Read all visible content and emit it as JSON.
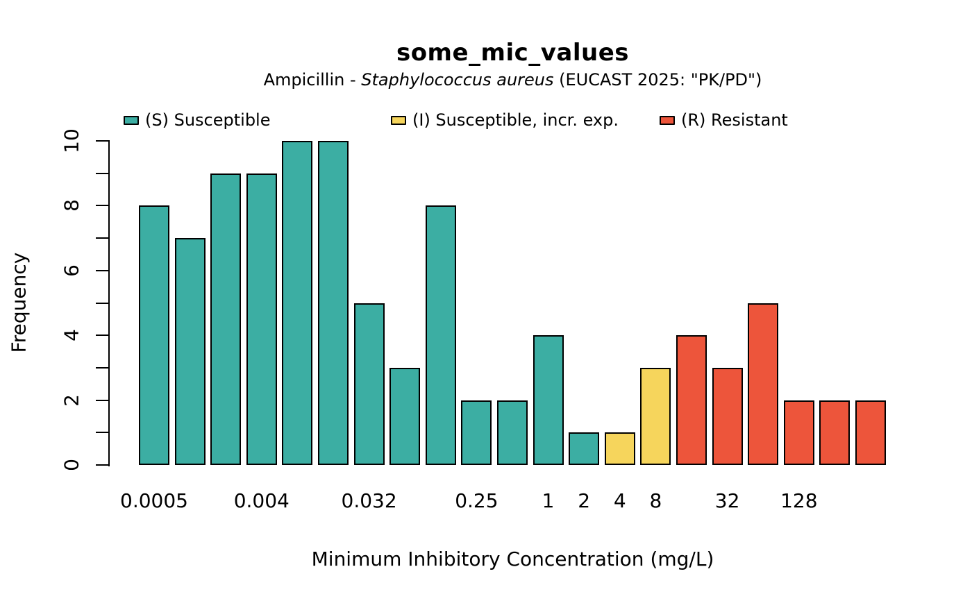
{
  "title": "some_mic_values",
  "subtitle": {
    "prefix": "Ampicillin - ",
    "italic": "Staphylococcus aureus",
    "suffix": " (EUCAST 2025: \"PK/PD\")"
  },
  "legend": [
    {
      "label": "(S) Susceptible",
      "color": "#3CAEA3"
    },
    {
      "label": "(I) Susceptible, incr. exp.",
      "color": "#F6D55C"
    },
    {
      "label": "(R) Resistant",
      "color": "#ED553B"
    }
  ],
  "chart_data": {
    "type": "bar",
    "title": "some_mic_values",
    "subtitle": "Ampicillin - Staphylococcus aureus (EUCAST 2025: \"PK/PD\")",
    "xlabel": "Minimum Inhibitory Concentration (mg/L)",
    "ylabel": "Frequency",
    "ylim": [
      0,
      10
    ],
    "grid": false,
    "legend_position": "top",
    "y_ticks": [
      0,
      1,
      2,
      3,
      4,
      5,
      6,
      7,
      8,
      9,
      10
    ],
    "y_labeled_values": [
      0,
      2,
      4,
      6,
      8,
      10
    ],
    "x_tick_labels_shown": [
      "0.0005",
      "0.004",
      "0.032",
      "0.25",
      "1",
      "2",
      "4",
      "8",
      "32",
      "128"
    ],
    "colors": {
      "S": "#3CAEA3",
      "I": "#F6D55C",
      "R": "#ED553B"
    },
    "series_note": "frequency of MIC values colored by SIR interpretation",
    "bars": [
      {
        "value": 8,
        "sir": "S",
        "tick": "0.0005"
      },
      {
        "value": 7,
        "sir": "S",
        "tick": ""
      },
      {
        "value": 9,
        "sir": "S",
        "tick": ""
      },
      {
        "value": 9,
        "sir": "S",
        "tick": "0.004"
      },
      {
        "value": 10,
        "sir": "S",
        "tick": ""
      },
      {
        "value": 10,
        "sir": "S",
        "tick": ""
      },
      {
        "value": 5,
        "sir": "S",
        "tick": "0.032"
      },
      {
        "value": 3,
        "sir": "S",
        "tick": ""
      },
      {
        "value": 8,
        "sir": "S",
        "tick": ""
      },
      {
        "value": 2,
        "sir": "S",
        "tick": "0.25"
      },
      {
        "value": 2,
        "sir": "S",
        "tick": ""
      },
      {
        "value": 4,
        "sir": "S",
        "tick": "1"
      },
      {
        "value": 1,
        "sir": "S",
        "tick": "2"
      },
      {
        "value": 1,
        "sir": "I",
        "tick": "4"
      },
      {
        "value": 3,
        "sir": "I",
        "tick": "8"
      },
      {
        "value": 4,
        "sir": "R",
        "tick": ""
      },
      {
        "value": 3,
        "sir": "R",
        "tick": "32"
      },
      {
        "value": 5,
        "sir": "R",
        "tick": ""
      },
      {
        "value": 2,
        "sir": "R",
        "tick": "128"
      },
      {
        "value": 2,
        "sir": "R",
        "tick": ""
      },
      {
        "value": 2,
        "sir": "R",
        "tick": ""
      }
    ]
  }
}
